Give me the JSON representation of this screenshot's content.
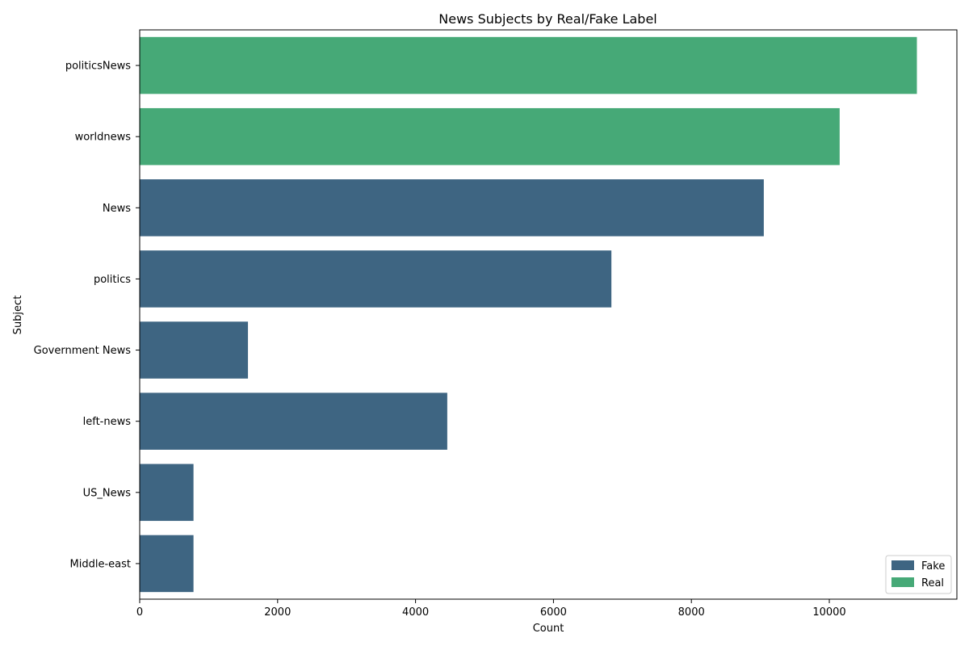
{
  "chart_data": {
    "type": "bar",
    "orientation": "horizontal",
    "title": "News Subjects by Real/Fake Label",
    "xlabel": "Count",
    "ylabel": "Subject",
    "xlim": [
      0,
      11850
    ],
    "xticks": [
      0,
      2000,
      4000,
      6000,
      8000,
      10000
    ],
    "grid": false,
    "legend_position": "lower-right",
    "categories": [
      "politicsNews",
      "worldnews",
      "News",
      "politics",
      "Government News",
      "left-news",
      "US_News",
      "Middle-east"
    ],
    "series": [
      {
        "name": "Fake",
        "color": "#3e6582",
        "values": [
          0,
          0,
          9050,
          6840,
          1570,
          4460,
          780,
          780
        ]
      },
      {
        "name": "Real",
        "color": "#46a977",
        "values": [
          11270,
          10150,
          0,
          0,
          0,
          0,
          0,
          0
        ]
      }
    ]
  }
}
